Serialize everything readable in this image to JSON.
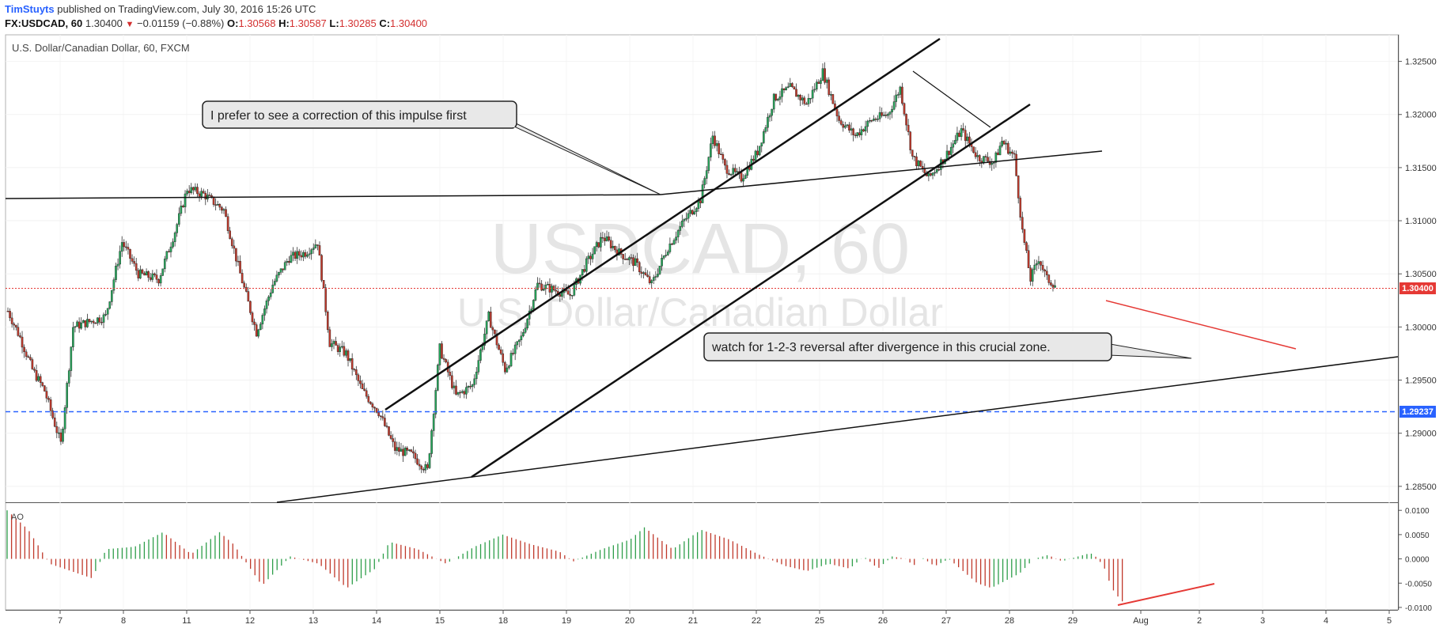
{
  "header": {
    "user": "TimStuyts",
    "published": "published on TradingView.com, July 30, 2016 15:26 UTC"
  },
  "ohlc": {
    "symbol": "FX:USDCAD, 60",
    "last": "1.30400",
    "change": "−0.01159 (−0.88%)",
    "o_label": "O:",
    "o": "1.30568",
    "h_label": "H:",
    "h": "1.30587",
    "l_label": "L:",
    "l": "1.30285",
    "c_label": "C:",
    "c": "1.30400"
  },
  "chart_data": [
    {
      "type": "candlestick",
      "title": "U.S. Dollar/Canadian Dollar, 60, FXCM",
      "watermark_symbol": "USDCAD, 60",
      "watermark_name": "U.S. Dollar/Canadian Dollar",
      "ylim": [
        1.2835,
        1.3275
      ],
      "y_ticks": [
        "1.28500",
        "1.29000",
        "1.29500",
        "1.30000",
        "1.30500",
        "1.31000",
        "1.31500",
        "1.32000",
        "1.32500"
      ],
      "x_ticks": [
        "7",
        "8",
        "11",
        "12",
        "13",
        "14",
        "15",
        "18",
        "19",
        "20",
        "21",
        "22",
        "25",
        "26",
        "27",
        "28",
        "29",
        "Aug",
        "2",
        "3",
        "4",
        "5"
      ],
      "price_tag": "1.30400",
      "level_tag": "1.29237",
      "level_value": 1.29237,
      "close_path": [
        {
          "x": 0,
          "y": 1.3015
        },
        {
          "x": 1.5,
          "y": 1.299
        },
        {
          "x": 3,
          "y": 1.296
        },
        {
          "x": 4.5,
          "y": 1.294
        },
        {
          "x": 6.5,
          "y": 1.289
        },
        {
          "x": 8,
          "y": 1.3
        },
        {
          "x": 10,
          "y": 1.3005
        },
        {
          "x": 12,
          "y": 1.301
        },
        {
          "x": 14,
          "y": 1.308
        },
        {
          "x": 16,
          "y": 1.305
        },
        {
          "x": 18.5,
          "y": 1.3045
        },
        {
          "x": 20.5,
          "y": 1.309
        },
        {
          "x": 22,
          "y": 1.313
        },
        {
          "x": 24,
          "y": 1.3125
        },
        {
          "x": 26.5,
          "y": 1.311
        },
        {
          "x": 28.5,
          "y": 1.305
        },
        {
          "x": 30.5,
          "y": 1.2995
        },
        {
          "x": 32.5,
          "y": 1.304
        },
        {
          "x": 34.5,
          "y": 1.3065
        },
        {
          "x": 36.5,
          "y": 1.307
        },
        {
          "x": 38,
          "y": 1.308
        },
        {
          "x": 39.5,
          "y": 1.2985
        },
        {
          "x": 41.5,
          "y": 1.2975
        },
        {
          "x": 43.5,
          "y": 1.294
        },
        {
          "x": 45.5,
          "y": 1.292
        },
        {
          "x": 47.5,
          "y": 1.2885
        },
        {
          "x": 49.5,
          "y": 1.288
        },
        {
          "x": 51.5,
          "y": 1.2865
        },
        {
          "x": 53,
          "y": 1.298
        },
        {
          "x": 55,
          "y": 1.2935
        },
        {
          "x": 57,
          "y": 1.2945
        },
        {
          "x": 59,
          "y": 1.301
        },
        {
          "x": 61,
          "y": 1.296
        },
        {
          "x": 63,
          "y": 1.299
        },
        {
          "x": 65,
          "y": 1.304
        },
        {
          "x": 67,
          "y": 1.3035
        },
        {
          "x": 69,
          "y": 1.303
        },
        {
          "x": 71,
          "y": 1.306
        },
        {
          "x": 73,
          "y": 1.3085
        },
        {
          "x": 75,
          "y": 1.307
        },
        {
          "x": 77,
          "y": 1.306
        },
        {
          "x": 79,
          "y": 1.304
        },
        {
          "x": 81,
          "y": 1.3075
        },
        {
          "x": 83,
          "y": 1.31
        },
        {
          "x": 85,
          "y": 1.312
        },
        {
          "x": 86.5,
          "y": 1.318
        },
        {
          "x": 88,
          "y": 1.315
        },
        {
          "x": 90,
          "y": 1.314
        },
        {
          "x": 92,
          "y": 1.3165
        },
        {
          "x": 94,
          "y": 1.3215
        },
        {
          "x": 96,
          "y": 1.3225
        },
        {
          "x": 98,
          "y": 1.321
        },
        {
          "x": 100,
          "y": 1.324
        },
        {
          "x": 102,
          "y": 1.3195
        },
        {
          "x": 104,
          "y": 1.318
        },
        {
          "x": 106,
          "y": 1.3195
        },
        {
          "x": 108,
          "y": 1.32
        },
        {
          "x": 109.5,
          "y": 1.3225
        },
        {
          "x": 111,
          "y": 1.316
        },
        {
          "x": 113,
          "y": 1.314
        },
        {
          "x": 115,
          "y": 1.316
        },
        {
          "x": 117,
          "y": 1.3185
        },
        {
          "x": 119,
          "y": 1.316
        },
        {
          "x": 121,
          "y": 1.3155
        },
        {
          "x": 122,
          "y": 1.3175
        },
        {
          "x": 123.5,
          "y": 1.316
        },
        {
          "x": 124.5,
          "y": 1.309
        },
        {
          "x": 125.5,
          "y": 1.3045
        },
        {
          "x": 126.5,
          "y": 1.3065
        },
        {
          "x": 127.5,
          "y": 1.3045
        },
        {
          "x": 128.5,
          "y": 1.304
        }
      ],
      "ao": {
        "ylim": [
          -0.0105,
          0.0115
        ],
        "y_ticks": [
          "0.0100",
          "0.0050",
          "0.0000",
          "-0.0050",
          "-0.0100"
        ],
        "label": "AO",
        "path": [
          {
            "x": 0,
            "y": 0.01
          },
          {
            "x": 3,
            "y": 0.006
          },
          {
            "x": 6,
            "y": -0.001
          },
          {
            "x": 9,
            "y": -0.0025
          },
          {
            "x": 12,
            "y": -0.004
          },
          {
            "x": 14,
            "y": 0.002
          },
          {
            "x": 18,
            "y": 0.0025
          },
          {
            "x": 22,
            "y": 0.0055
          },
          {
            "x": 26,
            "y": 0.001
          },
          {
            "x": 30,
            "y": 0.0055
          },
          {
            "x": 32,
            "y": 0.003
          },
          {
            "x": 36,
            "y": -0.0055
          },
          {
            "x": 40,
            "y": 0.0005
          },
          {
            "x": 44,
            "y": -0.001
          },
          {
            "x": 48,
            "y": -0.006
          },
          {
            "x": 52,
            "y": -0.002
          },
          {
            "x": 54,
            "y": 0.0035
          },
          {
            "x": 58,
            "y": 0.002
          },
          {
            "x": 62,
            "y": -0.001
          },
          {
            "x": 66,
            "y": 0.0025
          },
          {
            "x": 70,
            "y": 0.005
          },
          {
            "x": 74,
            "y": 0.003
          },
          {
            "x": 78,
            "y": 0.0015
          },
          {
            "x": 80,
            "y": -0.0005
          },
          {
            "x": 84,
            "y": 0.002
          },
          {
            "x": 88,
            "y": 0.004
          },
          {
            "x": 90,
            "y": 0.0065
          },
          {
            "x": 94,
            "y": 0.002
          },
          {
            "x": 98,
            "y": 0.006
          },
          {
            "x": 102,
            "y": 0.004
          },
          {
            "x": 106,
            "y": 0.001
          },
          {
            "x": 110,
            "y": -0.0015
          },
          {
            "x": 113,
            "y": -0.0025
          },
          {
            "x": 116,
            "y": -0.001
          },
          {
            "x": 119,
            "y": -0.002
          },
          {
            "x": 121,
            "y": 0.0005
          },
          {
            "x": 123,
            "y": -0.002
          },
          {
            "x": 125,
            "y": 0.0005
          },
          {
            "x": 127,
            "y": 0.0
          },
          {
            "x": 128,
            "y": -0.0015
          },
          {
            "x": 129,
            "y": 0.0005
          },
          {
            "x": 131,
            "y": -0.0015
          },
          {
            "x": 133,
            "y": 0.0
          },
          {
            "x": 135,
            "y": -0.0025
          },
          {
            "x": 137,
            "y": -0.005
          },
          {
            "x": 139,
            "y": -0.006
          },
          {
            "x": 141,
            "y": -0.0045
          },
          {
            "x": 143,
            "y": -0.003
          },
          {
            "x": 145,
            "y": 0.0
          },
          {
            "x": 147,
            "y": 0.0008
          },
          {
            "x": 149,
            "y": -0.0005
          },
          {
            "x": 151,
            "y": 0.0004
          },
          {
            "x": 153,
            "y": 0.0012
          },
          {
            "x": 154,
            "y": 0.0002
          },
          {
            "x": 155,
            "y": -0.002
          },
          {
            "x": 156,
            "y": -0.006
          },
          {
            "x": 157,
            "y": -0.008
          },
          {
            "x": 158,
            "y": -0.0095
          }
        ]
      }
    }
  ],
  "annotations": [
    {
      "text": "I prefer to see a correction of this impulse first"
    },
    {
      "text": "watch for 1-2-3 reversal after divergence in this crucial zone."
    }
  ]
}
